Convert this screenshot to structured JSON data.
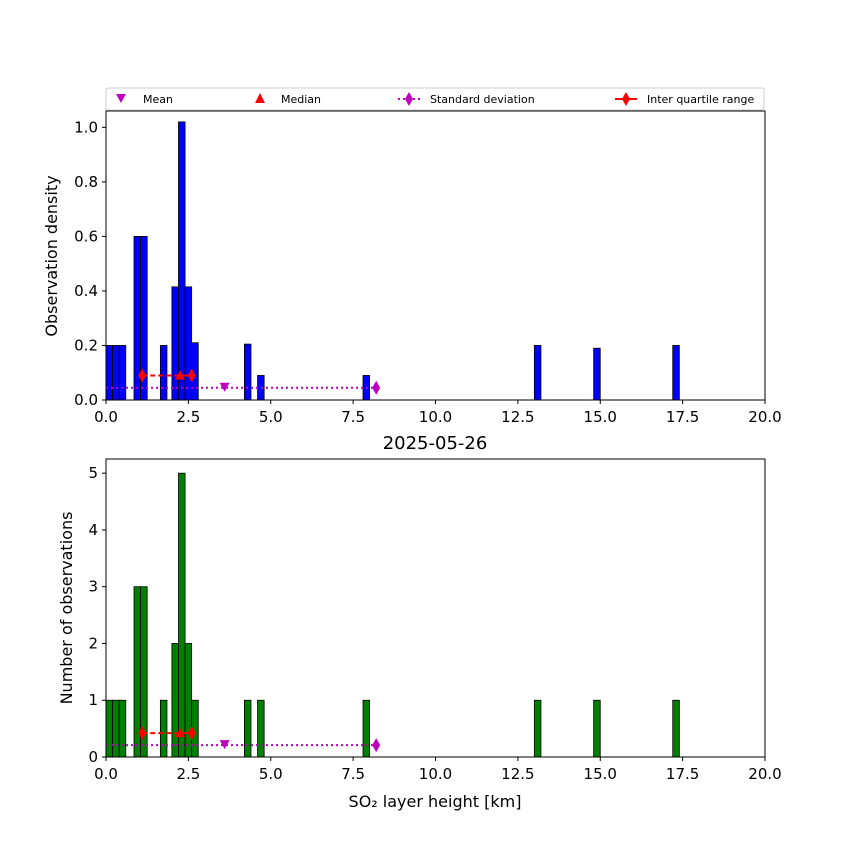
{
  "legend": {
    "mean": "Mean",
    "median": "Median",
    "std": "Standard deviation",
    "iqr": "Inter quartile range"
  },
  "colors": {
    "density_bar": "#0000ff",
    "count_bar": "#008000",
    "mean": "#bf00bf",
    "median": "#ff0000",
    "std": "#bf00bf",
    "iqr": "#ff0000"
  },
  "chart_data": [
    {
      "type": "bar",
      "title": "",
      "xlabel": "",
      "ylabel": "Observation density",
      "xlim": [
        0,
        20
      ],
      "ylim": [
        0,
        1.06
      ],
      "xticks": [
        "0.0",
        "2.5",
        "5.0",
        "7.5",
        "10.0",
        "12.5",
        "15.0",
        "17.5",
        "20.0"
      ],
      "yticks": [
        "0.0",
        "0.2",
        "0.4",
        "0.6",
        "0.8",
        "1.0"
      ],
      "bar_width": 0.2,
      "bars": [
        {
          "x": 0.0,
          "y": 0.2
        },
        {
          "x": 0.2,
          "y": 0.2
        },
        {
          "x": 0.4,
          "y": 0.2
        },
        {
          "x": 0.85,
          "y": 0.6
        },
        {
          "x": 1.05,
          "y": 0.6
        },
        {
          "x": 1.65,
          "y": 0.2
        },
        {
          "x": 2.0,
          "y": 0.415
        },
        {
          "x": 2.2,
          "y": 1.02
        },
        {
          "x": 2.4,
          "y": 0.415
        },
        {
          "x": 2.6,
          "y": 0.21
        },
        {
          "x": 4.2,
          "y": 0.205
        },
        {
          "x": 4.6,
          "y": 0.09
        },
        {
          "x": 7.8,
          "y": 0.09
        },
        {
          "x": 13.0,
          "y": 0.2
        },
        {
          "x": 14.8,
          "y": 0.19
        },
        {
          "x": 17.2,
          "y": 0.2
        }
      ],
      "stats": {
        "mean": 3.6,
        "median": 2.25,
        "std_range": [
          0.0,
          8.2
        ],
        "iqr_range": [
          1.1,
          2.6
        ],
        "marker_y_std": 0.045,
        "marker_y_iqr": 0.09
      }
    },
    {
      "type": "bar",
      "title": "2025-05-26",
      "xlabel": "SO₂ layer height [km]",
      "ylabel": "Number of observations",
      "xlim": [
        0,
        20
      ],
      "ylim": [
        0,
        5.25
      ],
      "xticks": [
        "0.0",
        "2.5",
        "5.0",
        "7.5",
        "10.0",
        "12.5",
        "15.0",
        "17.5",
        "20.0"
      ],
      "yticks": [
        "0",
        "1",
        "2",
        "3",
        "4",
        "5"
      ],
      "bar_width": 0.2,
      "bars": [
        {
          "x": 0.0,
          "y": 1
        },
        {
          "x": 0.2,
          "y": 1
        },
        {
          "x": 0.4,
          "y": 1
        },
        {
          "x": 0.85,
          "y": 3
        },
        {
          "x": 1.05,
          "y": 3
        },
        {
          "x": 1.65,
          "y": 1
        },
        {
          "x": 2.0,
          "y": 2
        },
        {
          "x": 2.2,
          "y": 5
        },
        {
          "x": 2.4,
          "y": 2
        },
        {
          "x": 2.6,
          "y": 1
        },
        {
          "x": 4.2,
          "y": 1
        },
        {
          "x": 4.6,
          "y": 1
        },
        {
          "x": 7.8,
          "y": 1
        },
        {
          "x": 13.0,
          "y": 1
        },
        {
          "x": 14.8,
          "y": 1
        },
        {
          "x": 17.2,
          "y": 1
        }
      ],
      "stats": {
        "mean": 3.6,
        "median": 2.25,
        "std_range": [
          0.0,
          8.2
        ],
        "iqr_range": [
          1.1,
          2.6
        ],
        "marker_y_std": 0.21,
        "marker_y_iqr": 0.42
      }
    }
  ]
}
